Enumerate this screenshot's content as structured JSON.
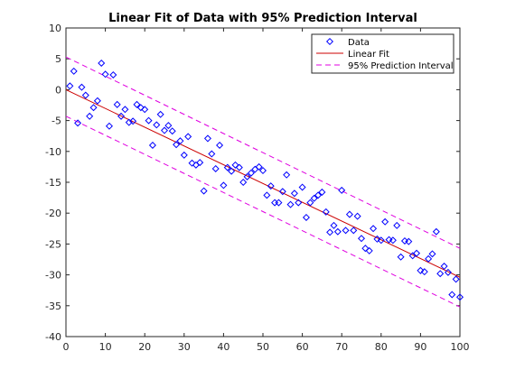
{
  "chart_data": {
    "type": "scatter",
    "title": "Linear Fit of Data with 95% Prediction Interval",
    "xlabel": "",
    "ylabel": "",
    "xlim": [
      0,
      100
    ],
    "ylim": [
      -40,
      10
    ],
    "xticks": [
      0,
      10,
      20,
      30,
      40,
      50,
      60,
      70,
      80,
      90,
      100
    ],
    "yticks": [
      10,
      5,
      0,
      -5,
      -10,
      -15,
      -20,
      -25,
      -30,
      -35,
      -40
    ],
    "grid": false,
    "legend_position": "top-right",
    "legend": [
      "Data",
      "Linear Fit",
      "95% Prediction Interval"
    ],
    "series": [
      {
        "name": "Data",
        "kind": "scatter",
        "marker": "diamond",
        "color": "#0000ff",
        "points": [
          [
            1,
            0.6
          ],
          [
            2,
            3.0
          ],
          [
            3,
            -5.4
          ],
          [
            4,
            0.4
          ],
          [
            5,
            -0.9
          ],
          [
            6,
            -4.3
          ],
          [
            7,
            -2.9
          ],
          [
            8,
            -1.8
          ],
          [
            9,
            4.3
          ],
          [
            10,
            2.5
          ],
          [
            11,
            -5.9
          ],
          [
            12,
            2.4
          ],
          [
            13,
            -2.4
          ],
          [
            14,
            -4.3
          ],
          [
            15,
            -3.2
          ],
          [
            16,
            -5.3
          ],
          [
            17,
            -5.1
          ],
          [
            18,
            -2.4
          ],
          [
            19,
            -2.9
          ],
          [
            20,
            -3.2
          ],
          [
            21,
            -5.0
          ],
          [
            22,
            -9.0
          ],
          [
            23,
            -5.7
          ],
          [
            24,
            -4.0
          ],
          [
            25,
            -6.6
          ],
          [
            26,
            -5.8
          ],
          [
            27,
            -6.7
          ],
          [
            28,
            -8.9
          ],
          [
            29,
            -8.3
          ],
          [
            30,
            -10.6
          ],
          [
            31,
            -7.6
          ],
          [
            32,
            -11.9
          ],
          [
            33,
            -12.2
          ],
          [
            34,
            -11.8
          ],
          [
            35,
            -16.4
          ],
          [
            36,
            -7.9
          ],
          [
            37,
            -10.4
          ],
          [
            38,
            -12.8
          ],
          [
            39,
            -9.0
          ],
          [
            40,
            -15.5
          ],
          [
            41,
            -12.6
          ],
          [
            42,
            -13.2
          ],
          [
            43,
            -12.2
          ],
          [
            44,
            -12.6
          ],
          [
            45,
            -15.0
          ],
          [
            46,
            -14.1
          ],
          [
            47,
            -13.5
          ],
          [
            48,
            -12.9
          ],
          [
            49,
            -12.5
          ],
          [
            50,
            -13.1
          ],
          [
            51,
            -17.1
          ],
          [
            52,
            -15.6
          ],
          [
            53,
            -18.3
          ],
          [
            54,
            -18.3
          ],
          [
            55,
            -16.5
          ],
          [
            56,
            -13.8
          ],
          [
            57,
            -18.6
          ],
          [
            58,
            -16.8
          ],
          [
            59,
            -18.3
          ],
          [
            60,
            -15.8
          ],
          [
            61,
            -20.7
          ],
          [
            62,
            -18.3
          ],
          [
            63,
            -17.6
          ],
          [
            64,
            -17.1
          ],
          [
            65,
            -16.6
          ],
          [
            66,
            -19.8
          ],
          [
            67,
            -23.1
          ],
          [
            68,
            -22.0
          ],
          [
            69,
            -23.0
          ],
          [
            70,
            -16.3
          ],
          [
            71,
            -22.8
          ],
          [
            72,
            -20.2
          ],
          [
            73,
            -22.8
          ],
          [
            74,
            -20.5
          ],
          [
            75,
            -24.1
          ],
          [
            76,
            -25.7
          ],
          [
            77,
            -26.1
          ],
          [
            78,
            -22.5
          ],
          [
            79,
            -24.2
          ],
          [
            80,
            -24.4
          ],
          [
            81,
            -21.4
          ],
          [
            82,
            -24.3
          ],
          [
            83,
            -24.4
          ],
          [
            84,
            -22.0
          ],
          [
            85,
            -27.1
          ],
          [
            86,
            -24.5
          ],
          [
            87,
            -24.6
          ],
          [
            88,
            -26.9
          ],
          [
            89,
            -26.5
          ],
          [
            90,
            -29.3
          ],
          [
            91,
            -29.5
          ],
          [
            92,
            -27.4
          ],
          [
            93,
            -26.6
          ],
          [
            94,
            -23.0
          ],
          [
            95,
            -29.8
          ],
          [
            96,
            -28.6
          ],
          [
            97,
            -29.6
          ],
          [
            98,
            -33.2
          ],
          [
            99,
            -30.7
          ],
          [
            100,
            -33.6
          ]
        ]
      },
      {
        "name": "Linear Fit",
        "kind": "line",
        "color": "#cc0000",
        "dash": "solid",
        "x": [
          0,
          100
        ],
        "y": [
          0.0,
          -30.4
        ]
      },
      {
        "name": "95% Prediction Interval",
        "kind": "line",
        "color": "#e000e0",
        "dash": "dashed",
        "bounds": [
          {
            "x": [
              0,
              100
            ],
            "y": [
              5.3,
              -25.7
            ]
          },
          {
            "x": [
              0,
              100
            ],
            "y": [
              -4.3,
              -35.2
            ]
          }
        ]
      }
    ]
  }
}
